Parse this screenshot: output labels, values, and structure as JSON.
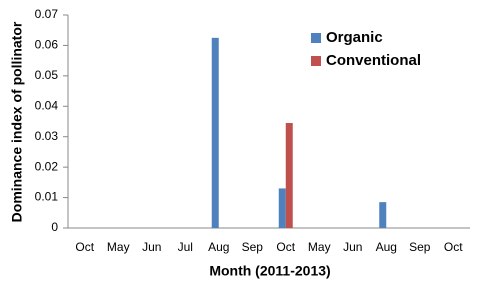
{
  "chart_data": {
    "type": "bar",
    "x_label": "Month (2011-2013)",
    "y_label": "Dominance index of pollinator",
    "categories": [
      "Oct",
      "May",
      "Jun",
      "Jul",
      "Aug",
      "Sep",
      "Oct",
      "May",
      "Jun",
      "Aug",
      "Sep",
      "Oct"
    ],
    "series": [
      {
        "name": "Organic",
        "color": "#4f81bd",
        "values": [
          0,
          0,
          0,
          0,
          0.0625,
          0,
          0.013,
          0,
          0,
          0.0085,
          0,
          0
        ]
      },
      {
        "name": "Conventional",
        "color": "#c0504d",
        "values": [
          0,
          0,
          0,
          0,
          0,
          0,
          0.0345,
          0,
          0,
          0,
          0,
          0
        ]
      }
    ],
    "ylim": [
      0,
      0.07
    ],
    "yticks": [
      0,
      0.01,
      0.02,
      0.03,
      0.04,
      0.05,
      0.06,
      0.07
    ],
    "legend": "upper right",
    "grid": false
  }
}
